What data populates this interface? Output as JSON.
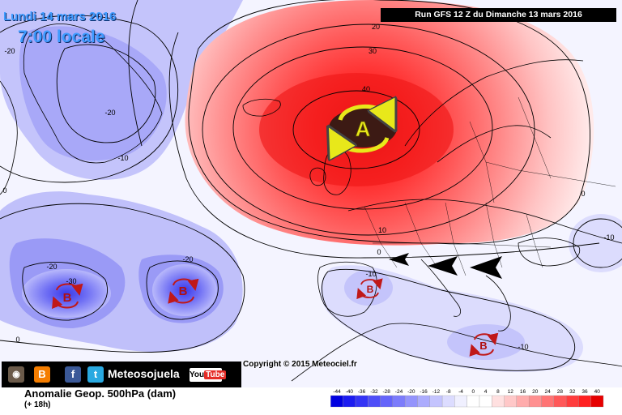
{
  "header": {
    "date": "Lundi 14 mars 2016",
    "time": "7:00 locale",
    "run": "Run GFS 12 Z du Dimanche 13 mars 2016"
  },
  "field": {
    "title": "Anomalie Geop. 500hPa (dam)",
    "lead": "(+ 18h)"
  },
  "copyright": "Copyright © 2015 Meteociel.fr",
  "social": {
    "brand": "Meteosojuela",
    "icons": [
      "instagram-icon",
      "blogger-icon",
      "facebook-icon",
      "twitter-icon",
      "youtube-icon"
    ],
    "blogger_glyph": "B",
    "facebook_glyph": "f",
    "twitter_glyph": "t",
    "youtube_you": "You",
    "youtube_tube": "Tube"
  },
  "pressure_systems": [
    {
      "label": "A",
      "kind": "high"
    },
    {
      "label": "B",
      "kind": "low"
    },
    {
      "label": "B",
      "kind": "low"
    },
    {
      "label": "B",
      "kind": "low"
    },
    {
      "label": "B",
      "kind": "low"
    }
  ],
  "contour_labels": [
    "-20",
    "-20",
    "-10",
    "-20",
    "-30",
    "-20",
    "0",
    "0",
    "20",
    "30",
    "40",
    "10",
    "0",
    "-10",
    "-10",
    "-10",
    "0"
  ],
  "scale": {
    "ticks": [
      "-44",
      "-40",
      "-36",
      "-32",
      "-28",
      "-24",
      "-20",
      "-16",
      "-12",
      "-8",
      "-4",
      "0",
      "4",
      "8",
      "12",
      "16",
      "20",
      "24",
      "28",
      "32",
      "36",
      "40"
    ],
    "colors": [
      "#0000e0",
      "#1c1cf0",
      "#3434f5",
      "#4e4ef8",
      "#6464fa",
      "#7c7cfb",
      "#9494fc",
      "#acacfd",
      "#c4c4fe",
      "#dcdcff",
      "#f0f0ff",
      "#ffffff",
      "#ffffff",
      "#ffe0e0",
      "#ffc8c8",
      "#ffacac",
      "#ff9090",
      "#ff7474",
      "#ff5858",
      "#ff3c3c",
      "#ff2020",
      "#e60000"
    ]
  },
  "colors": {
    "positive": "#ff3b3b",
    "negative": "#5b5bee",
    "high_center": "#3c1a14",
    "high_arrows": "#e8e81a",
    "low_arrows": "#c01818"
  }
}
